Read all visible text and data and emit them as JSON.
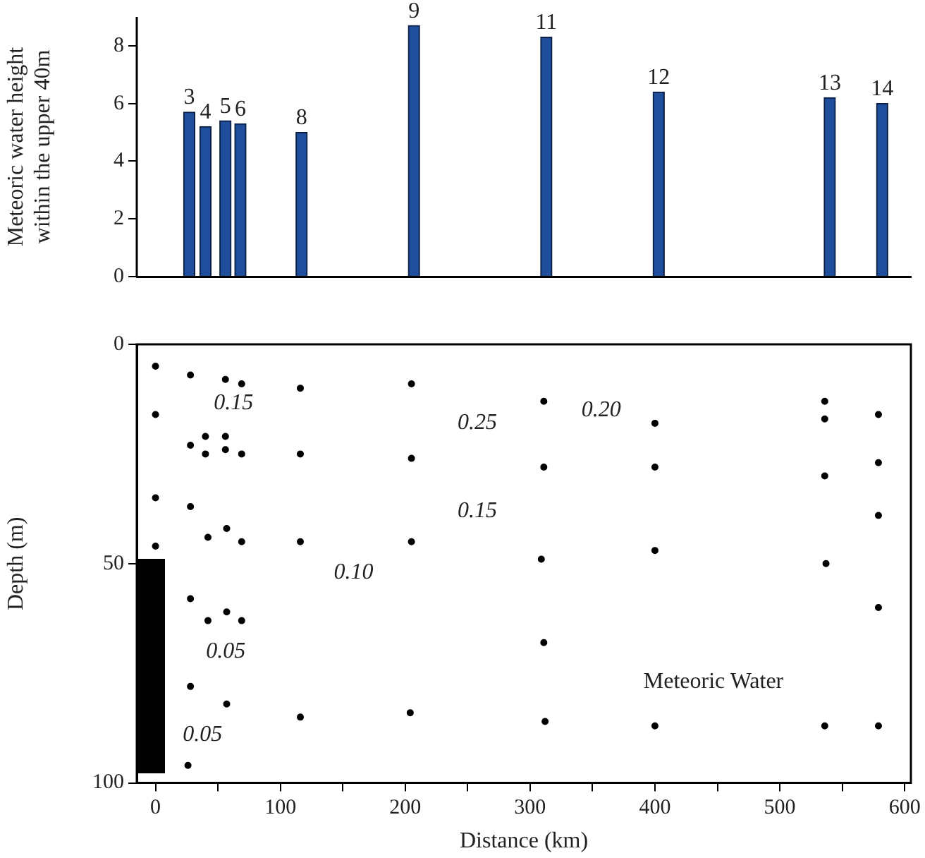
{
  "chart_data": [
    {
      "type": "bar",
      "ylabel": "Meteoric water height\nwithin the upper 40m",
      "x": [
        27,
        40,
        56,
        68,
        117,
        207,
        313,
        403,
        540,
        582
      ],
      "values": [
        5.7,
        5.2,
        5.4,
        5.3,
        5.0,
        8.7,
        8.3,
        6.4,
        6.2,
        6.0
      ],
      "color": "#1f4e9c",
      "xlim": [
        -15,
        605
      ],
      "ylim": [
        0,
        9
      ],
      "yticks": [
        0,
        2,
        4,
        6,
        8
      ],
      "tick_labels": "y",
      "grid": false,
      "legend": false,
      "annotations": [
        {
          "text": "3",
          "x": 27,
          "y": 5.7
        },
        {
          "text": "4",
          "x": 40,
          "y": 5.2
        },
        {
          "text": "5",
          "x": 56,
          "y": 5.4
        },
        {
          "text": "6",
          "x": 68,
          "y": 5.3
        },
        {
          "text": "8",
          "x": 117,
          "y": 5.0
        },
        {
          "text": "9",
          "x": 207,
          "y": 8.7
        },
        {
          "text": "11",
          "x": 313,
          "y": 8.3
        },
        {
          "text": "12",
          "x": 403,
          "y": 6.4
        },
        {
          "text": "13",
          "x": 540,
          "y": 6.2
        },
        {
          "text": "14",
          "x": 582,
          "y": 6.0
        }
      ]
    },
    {
      "type": "scatter",
      "xlabel": "Distance (km)",
      "ylabel": "Depth (m)",
      "color": "#000000",
      "marker": "circle",
      "x": [
        0,
        0,
        0,
        0,
        28,
        28,
        28,
        28,
        28,
        26,
        40,
        40,
        42,
        42,
        56,
        56,
        56,
        57,
        57,
        57,
        69,
        69,
        69,
        69,
        116,
        116,
        116,
        116,
        205,
        205,
        205,
        204,
        311,
        311,
        309,
        311,
        312,
        400,
        400,
        400,
        400,
        536,
        536,
        536,
        537,
        536,
        579,
        579,
        579,
        579,
        579
      ],
      "values": [
        5,
        16,
        35,
        46,
        7,
        23,
        37,
        58,
        78,
        96,
        21,
        25,
        44,
        63,
        8,
        21,
        24,
        42,
        61,
        82,
        9,
        25,
        45,
        63,
        10,
        25,
        45,
        85,
        9,
        26,
        45,
        84,
        13,
        28,
        49,
        68,
        86,
        18,
        28,
        47,
        87,
        13,
        17,
        30,
        50,
        87,
        16,
        27,
        39,
        60,
        87
      ],
      "xlim": [
        -15,
        605
      ],
      "ylim": [
        100,
        0
      ],
      "yticks": [
        0,
        50,
        100
      ],
      "xticks": [
        0,
        {
          "value": 50,
          "label": null
        },
        100,
        {
          "value": 150,
          "label": null
        },
        200,
        {
          "value": 250,
          "label": null
        },
        300,
        {
          "value": 350,
          "label": null
        },
        400,
        {
          "value": 450,
          "label": null
        },
        500,
        {
          "value": 550,
          "label": null
        },
        600
      ],
      "grid": false,
      "legend": false,
      "annotations": [
        "0.15",
        "0.25",
        "0.20",
        "0.15",
        "0.10",
        "0.05",
        "0.05",
        "Meteoric Water"
      ]
    }
  ]
}
